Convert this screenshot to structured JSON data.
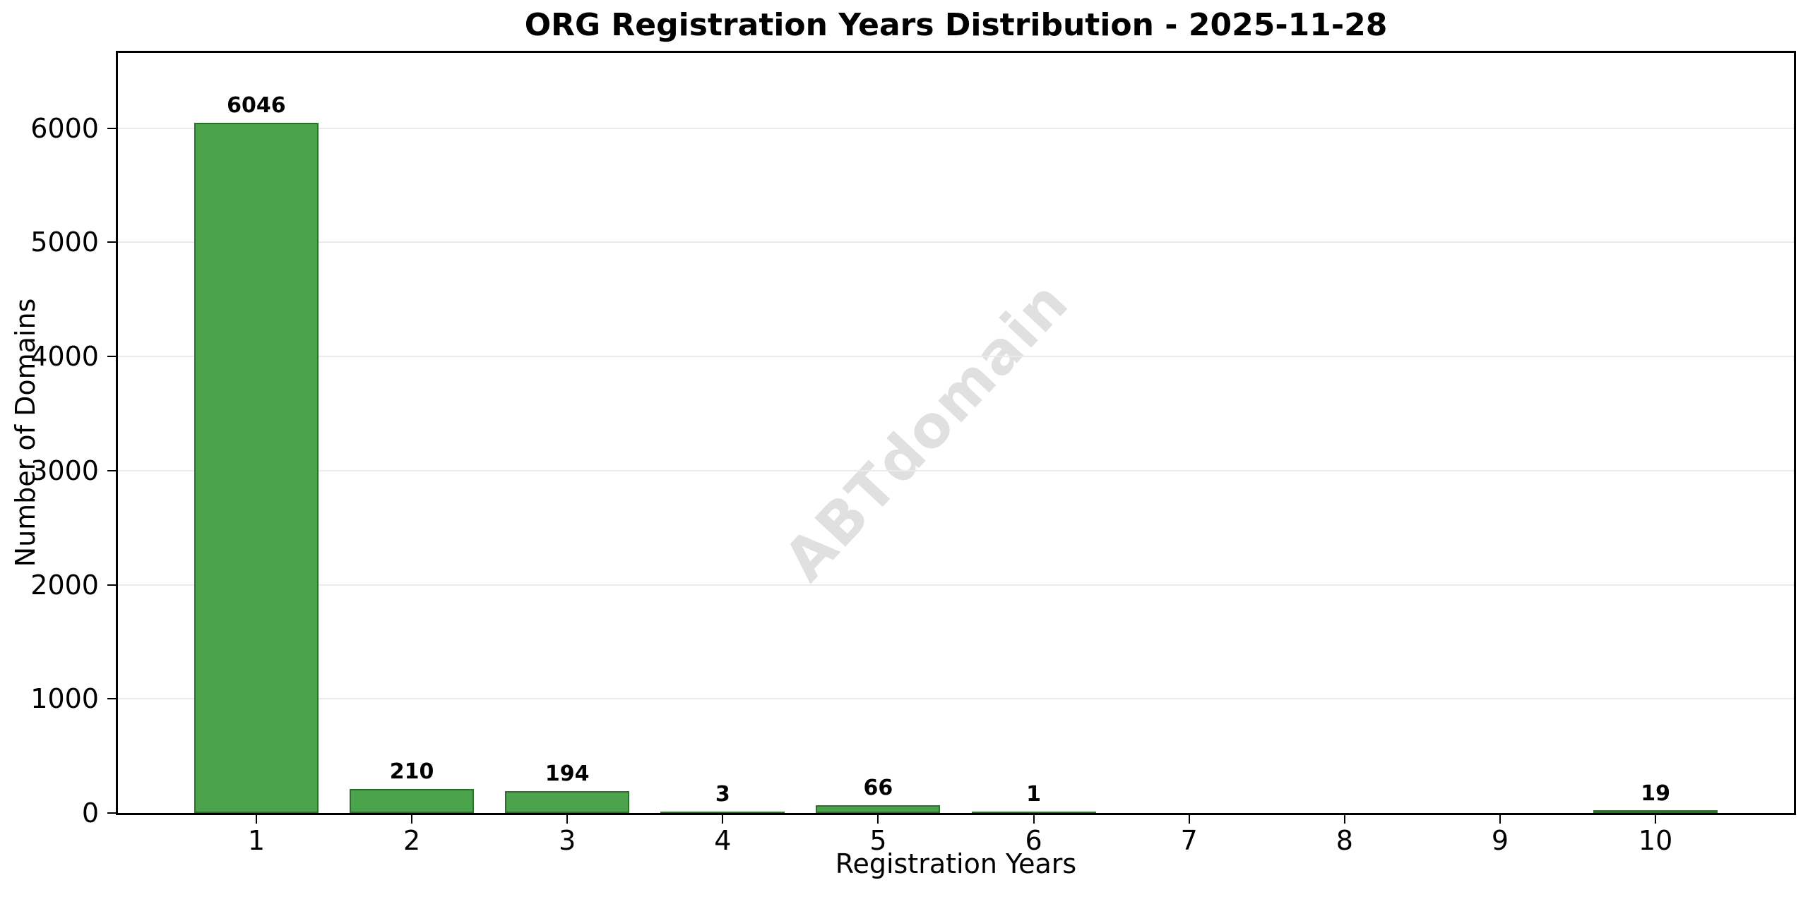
{
  "colors": {
    "bar_fill": "#4ba34c",
    "bar_edge": "#2b712b",
    "grid": "#ebebeb",
    "axis": "#000000",
    "watermark_gray": "#e0e0e0",
    "background": "#ffffff"
  },
  "chart_data": {
    "type": "bar",
    "title": "ORG Registration Years Distribution - 2025-11-28",
    "xlabel": "Registration Years",
    "ylabel": "Number of Domains",
    "watermark": "ABTdomain",
    "categories": [
      1,
      2,
      3,
      4,
      5,
      6,
      7,
      8,
      9,
      10
    ],
    "values": [
      6046,
      210,
      194,
      3,
      66,
      1,
      0,
      0,
      0,
      19
    ],
    "bar_labels": [
      "6046",
      "210",
      "194",
      "3",
      "66",
      "1",
      "",
      "",
      "",
      "19"
    ],
    "xtick_labels": [
      "1",
      "2",
      "3",
      "4",
      "5",
      "6",
      "7",
      "8",
      "9",
      "10"
    ],
    "yticks": [
      0,
      1000,
      2000,
      3000,
      4000,
      5000,
      6000
    ],
    "ylim": [
      0,
      6660
    ],
    "xlim": [
      0.11,
      10.89
    ],
    "bar_width": 0.8,
    "grid": "horizontal-only",
    "legend": "none"
  }
}
